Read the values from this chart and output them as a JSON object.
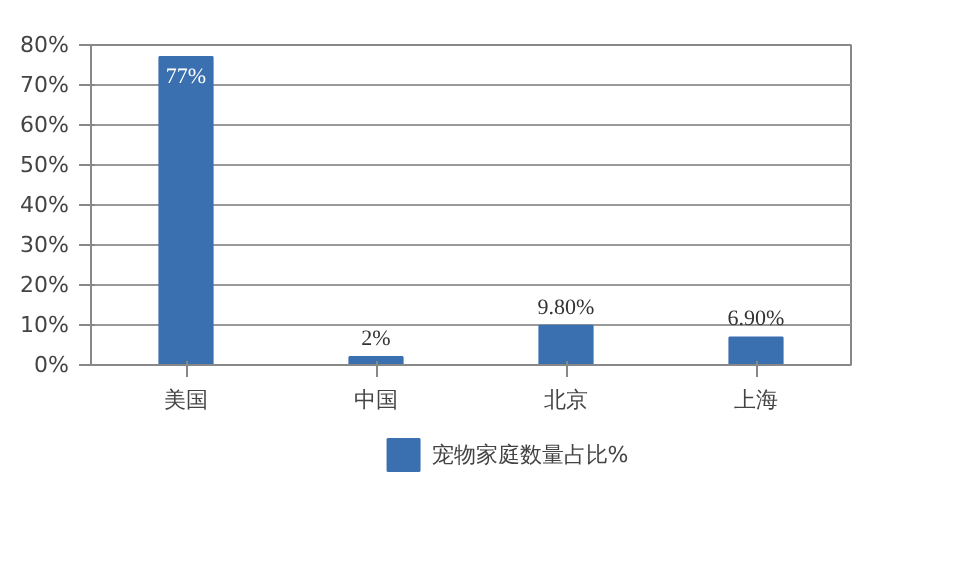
{
  "chart_data": {
    "type": "bar",
    "categories": [
      "美国",
      "中国",
      "北京",
      "上海"
    ],
    "series": [
      {
        "name": "宠物家庭数量占比%",
        "color": "#3a6fb0",
        "values": [
          77,
          2,
          9.8,
          6.9
        ],
        "value_labels": [
          "77%",
          "2%",
          "9.80%",
          "6.90%"
        ]
      }
    ],
    "ylim": [
      0,
      80
    ],
    "yticks": [
      {
        "value": 0,
        "label": "0%"
      },
      {
        "value": 10,
        "label": "10%"
      },
      {
        "value": 20,
        "label": "20%"
      },
      {
        "value": 30,
        "label": "30%"
      },
      {
        "value": 40,
        "label": "40%"
      },
      {
        "value": 50,
        "label": "50%"
      },
      {
        "value": 60,
        "label": "60%"
      },
      {
        "value": 70,
        "label": "70%"
      },
      {
        "value": 80,
        "label": "80%"
      }
    ],
    "grid": "y",
    "legend": "bottom"
  }
}
